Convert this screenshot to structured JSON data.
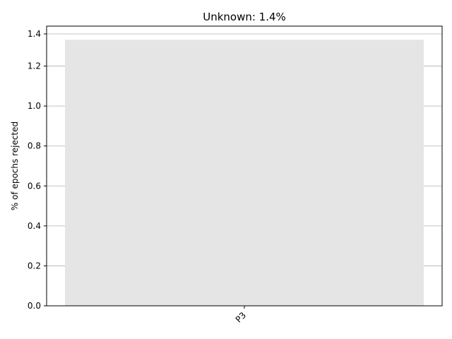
{
  "chart_data": {
    "type": "bar",
    "title": "Unknown: 1.4%",
    "xlabel": "",
    "ylabel": "% of epochs rejected",
    "categories": [
      "P3"
    ],
    "values": [
      1.37
    ],
    "ylim": [
      0,
      1.4
    ],
    "yticks": [
      "0.0",
      "0.2",
      "0.4",
      "0.6",
      "0.8",
      "1.0",
      "1.2",
      "1.4"
    ],
    "grid": "horizontal",
    "bar_color": "#e5e5e5",
    "grid_color": "#b0b0b0"
  }
}
